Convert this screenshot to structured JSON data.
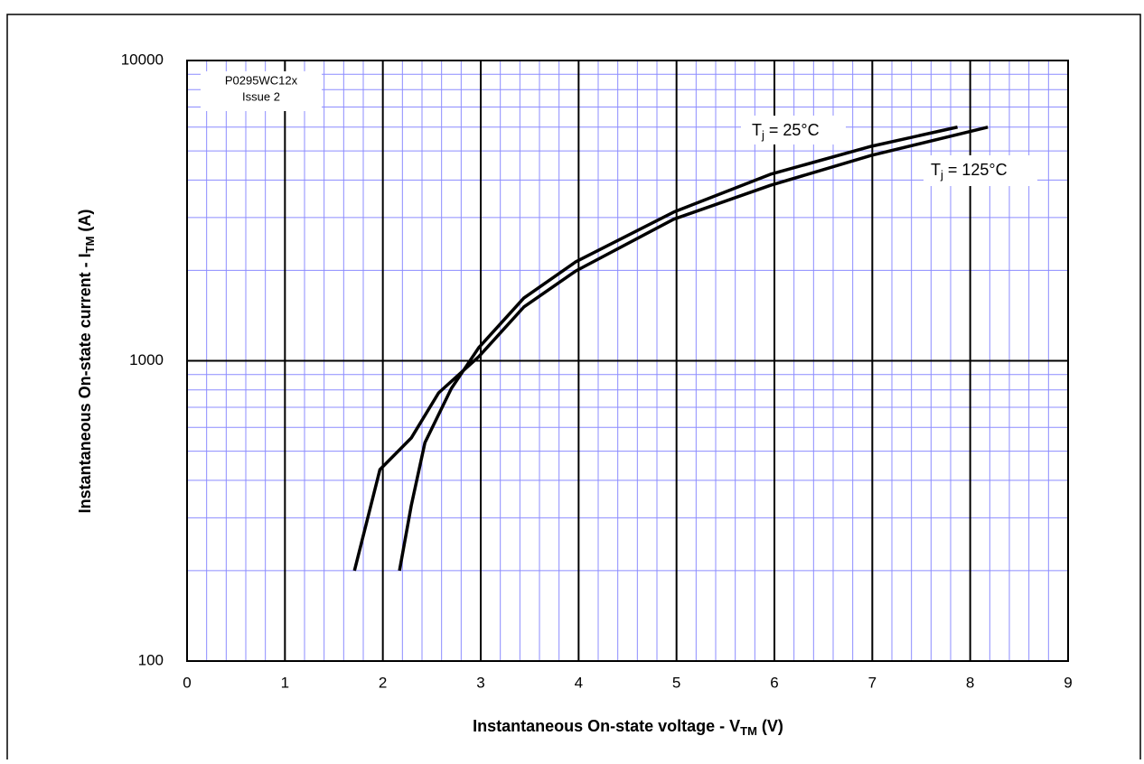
{
  "chart_data": {
    "type": "line",
    "x_label": [
      "Instantaneous On-state voltage - V",
      "TM",
      " (V)"
    ],
    "y_label": [
      "Instantaneous On-state current - I",
      "TM",
      " (A)"
    ],
    "note": [
      "P0295WC12x",
      "Issue 2"
    ],
    "series": [
      {
        "name": [
          "T",
          "j",
          " = 25°C"
        ],
        "color": "#000000",
        "x": [
          2.17,
          2.29,
          2.43,
          2.7,
          2.98,
          3.44,
          3.97,
          4.97,
          5.96,
          6.99,
          7.87
        ],
        "values": [
          200,
          329,
          534,
          809,
          1106,
          1618,
          2135,
          3126,
          4180,
          5180,
          6000
        ]
      },
      {
        "name": [
          "T",
          "j",
          " = 125°C"
        ],
        "color": "#000000",
        "x": [
          1.71,
          1.97,
          2.29,
          2.57,
          2.98,
          3.44,
          3.97,
          4.97,
          5.96,
          6.99,
          8.18
        ],
        "values": [
          200,
          434,
          553,
          782,
          1032,
          1510,
          1990,
          2960,
          3840,
          4830,
          6000
        ]
      }
    ],
    "xlim": [
      0,
      9
    ],
    "xticks": [
      0,
      1,
      2,
      3,
      4,
      5,
      6,
      7,
      8,
      9
    ],
    "ylim": [
      100,
      10000
    ],
    "yticks": [
      100,
      1000,
      10000
    ],
    "ylog": true,
    "grid": true,
    "minor_grid": true,
    "minor_grid_color": "#8c8cff"
  }
}
